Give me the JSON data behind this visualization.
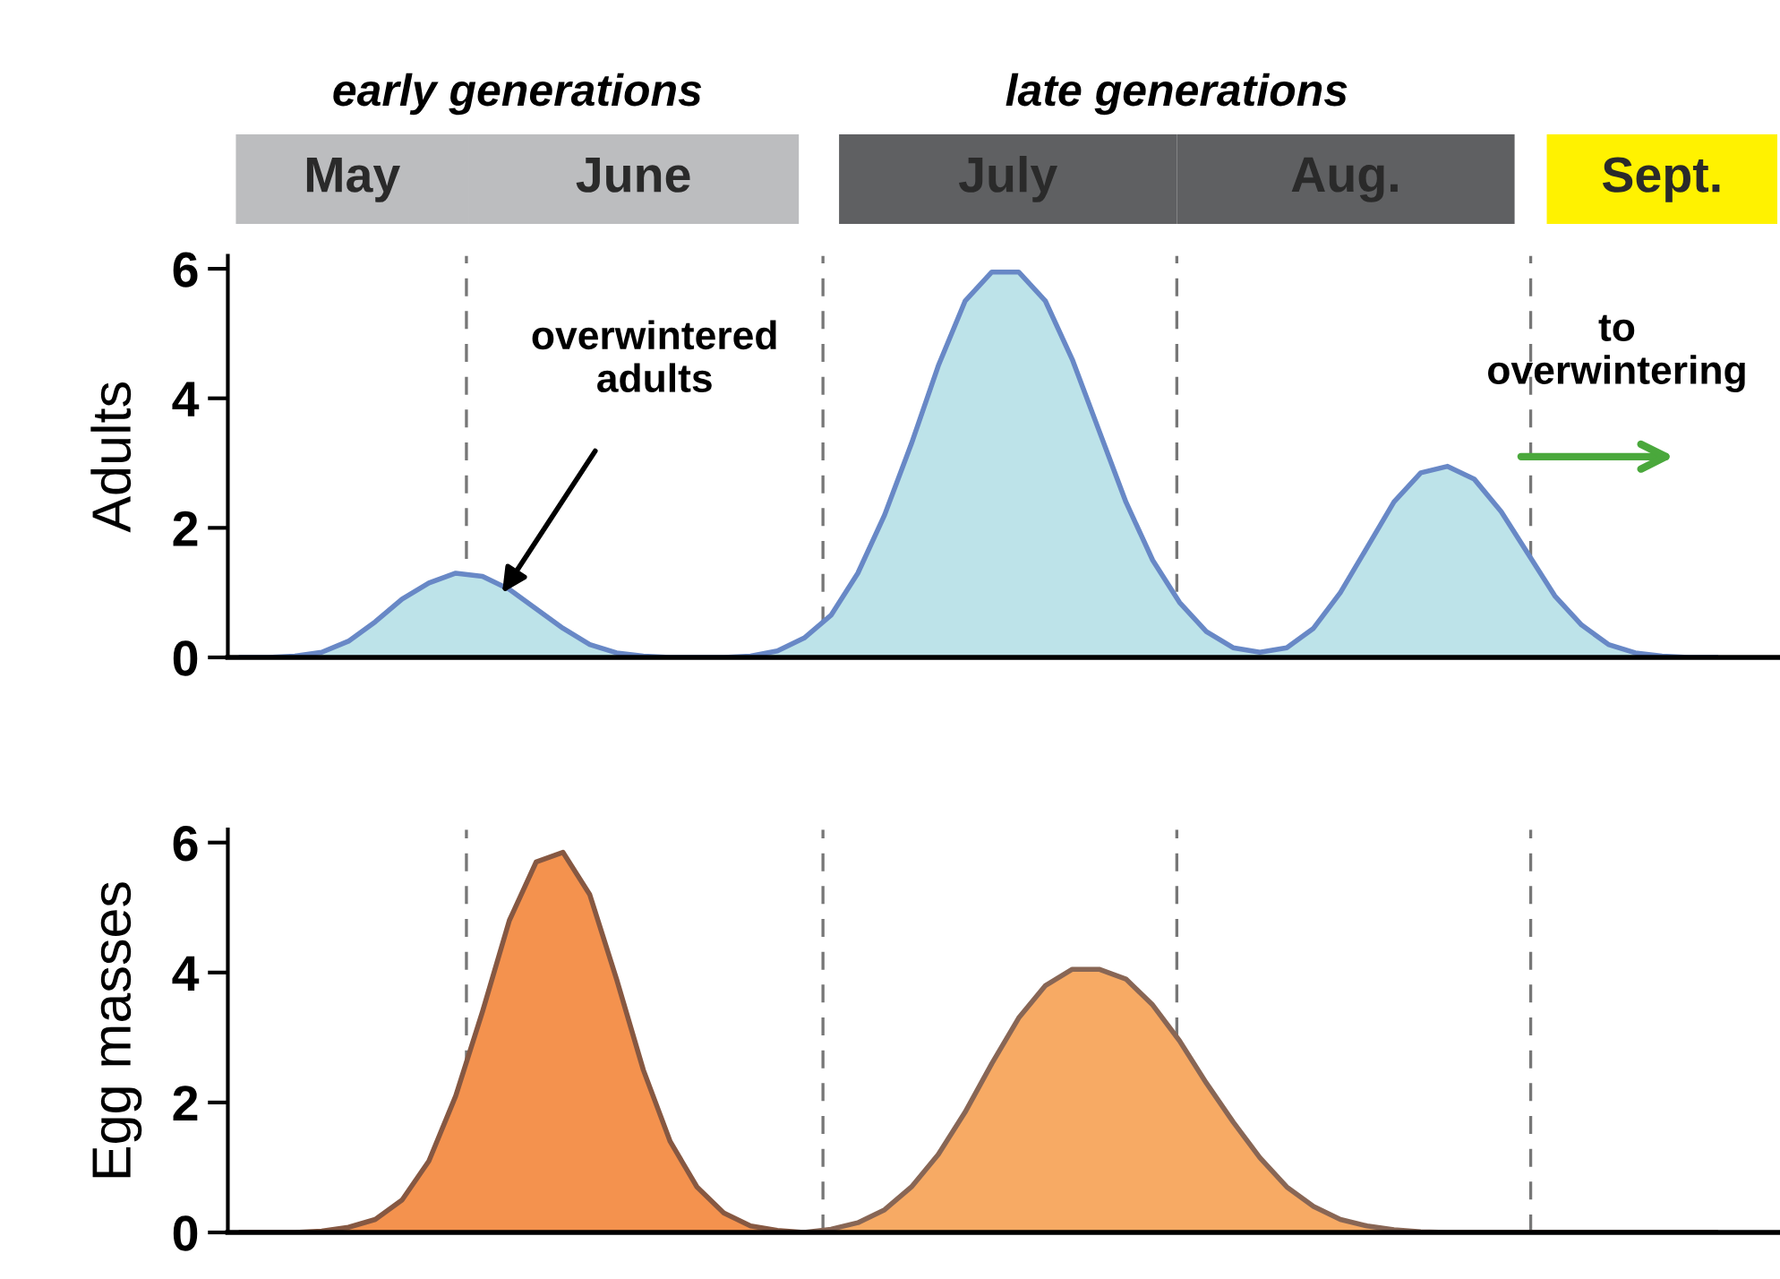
{
  "chart_data": [
    {
      "type": "area",
      "ylabel": "Adults",
      "categories": [
        null,
        null,
        null,
        null,
        null,
        null,
        null,
        null,
        null,
        null,
        null,
        null,
        null,
        null,
        null,
        null,
        null,
        null,
        null,
        null,
        null,
        null,
        null,
        null,
        null,
        null,
        null,
        null,
        null,
        null,
        null,
        null,
        null,
        null,
        null,
        null,
        null,
        null,
        null,
        null,
        null,
        null,
        null,
        null,
        null,
        null,
        null,
        null,
        null,
        null,
        null,
        null,
        null,
        null,
        null,
        null
      ],
      "series": [
        {
          "color": "#bde3e9",
          "values": [
            0,
            0,
            0.02,
            0.08,
            0.25,
            0.55,
            0.9,
            1.15,
            1.3,
            1.25,
            1.05,
            0.75,
            0.45,
            0.2,
            0.07,
            0.02,
            0,
            0,
            0,
            0.02,
            0.1,
            0.3,
            0.65,
            1.3,
            2.2,
            3.3,
            4.5,
            5.5,
            5.95,
            5.95,
            5.5,
            4.6,
            3.5,
            2.4,
            1.5,
            0.85,
            0.4,
            0.15,
            0.08,
            0.15,
            0.45,
            1.0,
            1.7,
            2.4,
            2.85,
            2.95,
            2.75,
            2.25,
            1.6,
            0.95,
            0.5,
            0.2,
            0.07,
            0.02,
            0,
            0
          ]
        }
      ],
      "ylim": [
        0,
        6.2
      ],
      "yticks": [
        0,
        2,
        4,
        6
      ],
      "grid": false,
      "legend": false,
      "annotations": [
        "early generations",
        "late generations",
        "May",
        "June",
        "July",
        "Aug.",
        "Sept.",
        "overwintered\nadults",
        "to\noverwintering"
      ]
    },
    {
      "type": "area",
      "ylabel": "Egg masses",
      "categories": [
        null,
        null,
        null,
        null,
        null,
        null,
        null,
        null,
        null,
        null,
        null,
        null,
        null,
        null,
        null,
        null,
        null,
        null,
        null,
        null,
        null,
        null,
        null,
        null,
        null,
        null,
        null,
        null,
        null,
        null,
        null,
        null,
        null,
        null,
        null,
        null,
        null,
        null,
        null,
        null,
        null,
        null,
        null,
        null,
        null,
        null,
        null,
        null,
        null,
        null,
        null,
        null,
        null,
        null,
        null,
        null
      ],
      "series": [
        {
          "color": "#f4924e",
          "values": [
            0,
            0,
            0,
            0.02,
            0.08,
            0.2,
            0.5,
            1.1,
            2.1,
            3.4,
            4.8,
            5.7,
            5.85,
            5.2,
            3.9,
            2.5,
            1.4,
            0.7,
            0.3,
            0.1,
            0.03,
            0,
            null,
            null,
            null,
            null,
            null,
            null,
            null,
            null,
            null,
            null,
            null,
            null,
            null,
            null,
            null,
            null,
            null,
            null,
            null,
            null,
            null,
            null,
            null,
            null,
            null,
            null,
            null,
            null,
            null,
            null,
            null,
            null,
            null,
            null
          ]
        },
        {
          "color": "#f7aa64",
          "values": [
            null,
            null,
            null,
            null,
            null,
            null,
            null,
            null,
            null,
            null,
            null,
            null,
            null,
            null,
            null,
            null,
            null,
            null,
            null,
            null,
            null,
            0,
            0.05,
            0.15,
            0.35,
            0.7,
            1.2,
            1.85,
            2.6,
            3.3,
            3.8,
            4.05,
            4.05,
            3.9,
            3.5,
            2.95,
            2.3,
            1.7,
            1.15,
            0.7,
            0.4,
            0.2,
            0.1,
            0.04,
            0.01,
            0,
            0,
            0,
            0,
            0,
            0,
            0,
            0,
            0,
            0,
            0
          ]
        }
      ],
      "ylim": [
        0,
        6.2
      ],
      "yticks": [
        0,
        2,
        4,
        6
      ],
      "grid": false,
      "legend": false
    }
  ]
}
